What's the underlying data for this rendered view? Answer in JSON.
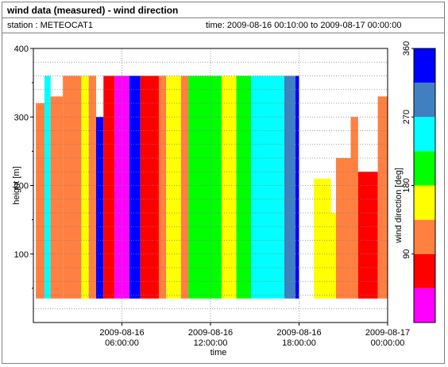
{
  "header": {
    "title": "wind data (measured) - wind direction",
    "station": "station : METEOCAT1",
    "time_range": "time: 2009-08-16 00:10:00 to 2009-08-17 00:00:00"
  },
  "chart_data": {
    "type": "heatmap",
    "title": "",
    "xlabel": "time",
    "ylabel": "height [m]",
    "xlim": [
      "2009-08-16 00:00:00",
      "2009-08-17 00:00:00"
    ],
    "ylim": [
      0,
      400
    ],
    "x_ticks": [
      {
        "value": "2009-08-16 06:00:00",
        "line1": "2009-08-16",
        "line2": "06:00:00"
      },
      {
        "value": "2009-08-16 12:00:00",
        "line1": "2009-08-16",
        "line2": "12:00:00"
      },
      {
        "value": "2009-08-16 18:00:00",
        "line1": "2009-08-16",
        "line2": "18:00:00"
      },
      {
        "value": "2009-08-17 00:00:00",
        "line1": "2009-08-17",
        "line2": "00:00:00"
      }
    ],
    "y_ticks": [
      100,
      200,
      300,
      400
    ],
    "grid": true,
    "colorbar": {
      "label": "wind direction [deg]",
      "min": 0,
      "max": 360,
      "ticks": [
        90,
        180,
        270,
        360
      ],
      "bins": [
        {
          "from": 0,
          "to": 45,
          "color": "#ff00ff"
        },
        {
          "from": 45,
          "to": 90,
          "color": "#ff0000"
        },
        {
          "from": 90,
          "to": 135,
          "color": "#ff8040"
        },
        {
          "from": 135,
          "to": 180,
          "color": "#ffff00"
        },
        {
          "from": 180,
          "to": 225,
          "color": "#00ff00"
        },
        {
          "from": 225,
          "to": 270,
          "color": "#00ffff"
        },
        {
          "from": 270,
          "to": 315,
          "color": "#4080c0"
        },
        {
          "from": 315,
          "to": 360,
          "color": "#0000ff"
        }
      ]
    },
    "heatmap_bands": [
      {
        "from": "2009-08-16 00:10:00",
        "to": "2009-08-16 00:45:00",
        "value_deg": 112,
        "top_m": 320
      },
      {
        "from": "2009-08-16 00:45:00",
        "to": "2009-08-16 01:10:00",
        "value_deg": 248,
        "top_m": 360
      },
      {
        "from": "2009-08-16 01:10:00",
        "to": "2009-08-16 02:00:00",
        "value_deg": 112,
        "top_m": 330
      },
      {
        "from": "2009-08-16 02:00:00",
        "to": "2009-08-16 03:15:00",
        "value_deg": 112,
        "top_m": 360
      },
      {
        "from": "2009-08-16 03:15:00",
        "to": "2009-08-16 03:45:00",
        "value_deg": 157,
        "top_m": 360
      },
      {
        "from": "2009-08-16 03:45:00",
        "to": "2009-08-16 04:15:00",
        "value_deg": 112,
        "top_m": 360
      },
      {
        "from": "2009-08-16 04:15:00",
        "to": "2009-08-16 04:45:00",
        "value_deg": 337,
        "top_m": 300
      },
      {
        "from": "2009-08-16 04:45:00",
        "to": "2009-08-16 05:30:00",
        "value_deg": 67,
        "top_m": 360
      },
      {
        "from": "2009-08-16 05:30:00",
        "to": "2009-08-16 06:30:00",
        "value_deg": 22,
        "top_m": 360
      },
      {
        "from": "2009-08-16 06:30:00",
        "to": "2009-08-16 07:15:00",
        "value_deg": 337,
        "top_m": 360
      },
      {
        "from": "2009-08-16 07:15:00",
        "to": "2009-08-16 08:30:00",
        "value_deg": 67,
        "top_m": 360
      },
      {
        "from": "2009-08-16 08:30:00",
        "to": "2009-08-16 09:00:00",
        "value_deg": 112,
        "top_m": 360
      },
      {
        "from": "2009-08-16 09:00:00",
        "to": "2009-08-16 10:00:00",
        "value_deg": 157,
        "top_m": 360
      },
      {
        "from": "2009-08-16 10:00:00",
        "to": "2009-08-16 10:30:00",
        "value_deg": 112,
        "top_m": 360
      },
      {
        "from": "2009-08-16 10:30:00",
        "to": "2009-08-16 12:45:00",
        "value_deg": 202,
        "top_m": 360
      },
      {
        "from": "2009-08-16 12:45:00",
        "to": "2009-08-16 13:45:00",
        "value_deg": 157,
        "top_m": 360
      },
      {
        "from": "2009-08-16 13:45:00",
        "to": "2009-08-16 14:45:00",
        "value_deg": 202,
        "top_m": 360
      },
      {
        "from": "2009-08-16 14:45:00",
        "to": "2009-08-16 17:00:00",
        "value_deg": 247,
        "top_m": 360
      },
      {
        "from": "2009-08-16 17:00:00",
        "to": "2009-08-16 17:45:00",
        "value_deg": 292,
        "top_m": 360
      },
      {
        "from": "2009-08-16 17:45:00",
        "to": "2009-08-16 18:00:00",
        "value_deg": 337,
        "top_m": 360
      },
      {
        "from": "2009-08-16 19:00:00",
        "to": "2009-08-16 20:10:00",
        "value_deg": 157,
        "top_m": 210
      },
      {
        "from": "2009-08-16 20:10:00",
        "to": "2009-08-16 20:30:00",
        "value_deg": 157,
        "top_m": 160
      },
      {
        "from": "2009-08-16 20:30:00",
        "to": "2009-08-16 21:30:00",
        "value_deg": 112,
        "top_m": 240
      },
      {
        "from": "2009-08-16 21:30:00",
        "to": "2009-08-16 22:00:00",
        "value_deg": 112,
        "top_m": 300
      },
      {
        "from": "2009-08-16 22:00:00",
        "to": "2009-08-16 23:20:00",
        "value_deg": 67,
        "top_m": 220
      },
      {
        "from": "2009-08-16 23:20:00",
        "to": "2009-08-17 00:00:00",
        "value_deg": 112,
        "top_m": 330
      }
    ]
  }
}
